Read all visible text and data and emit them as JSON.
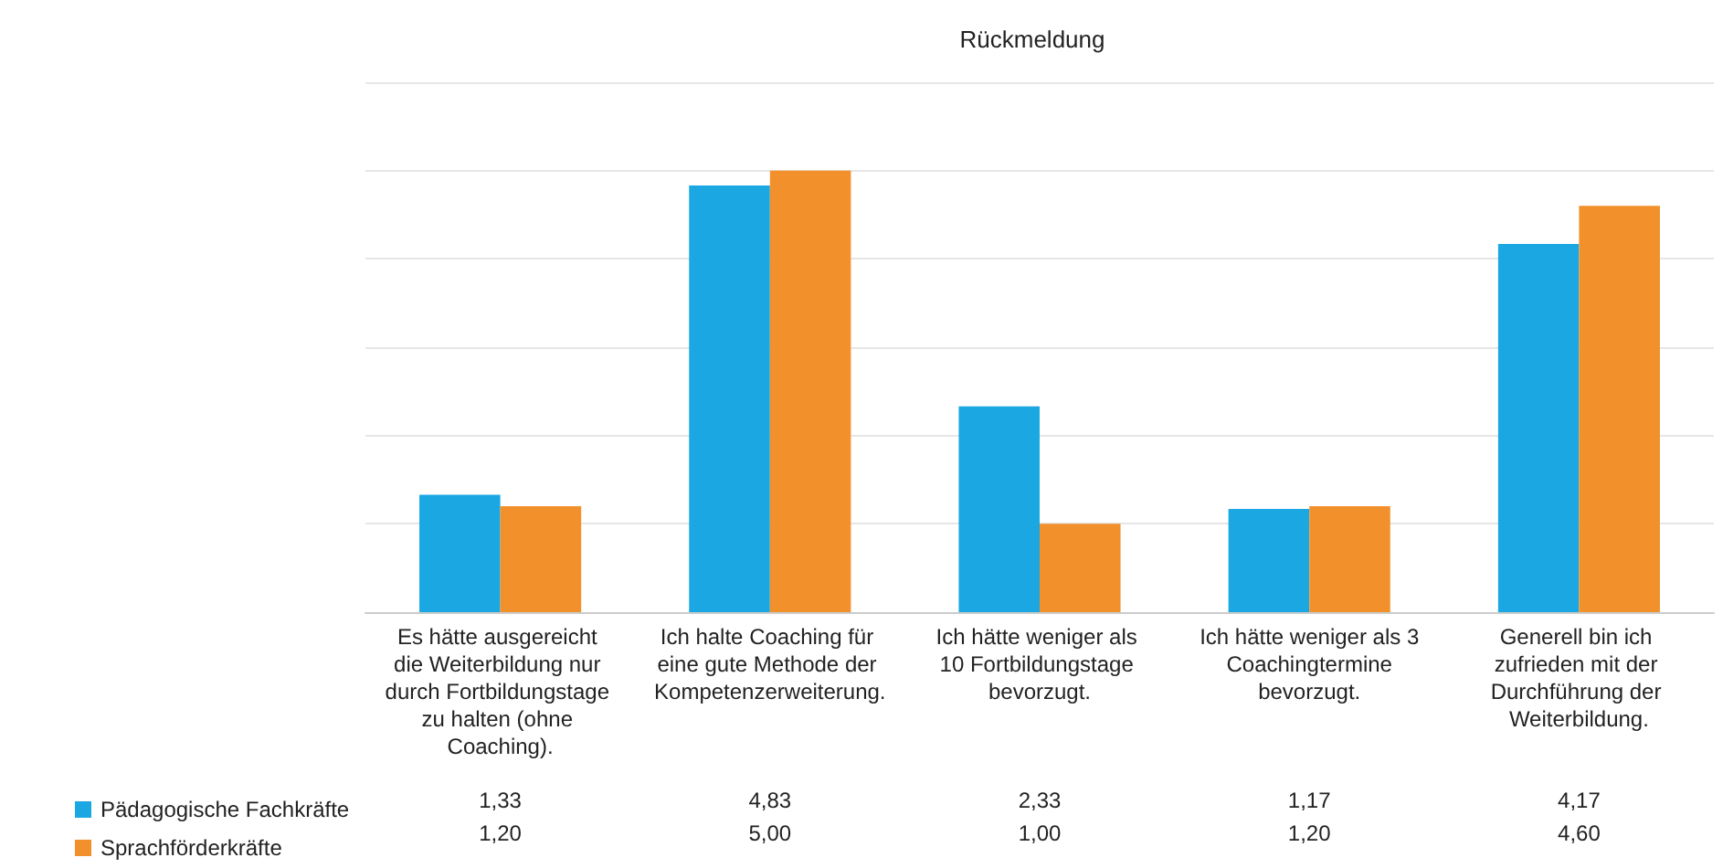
{
  "chart_data": {
    "type": "bar",
    "title": "Rückmeldung",
    "categories": [
      "Es hätte ausgereicht die Weiterbildung nur durch Fortbildungstage zu halten (ohne Coaching).",
      "Ich halte Coaching für eine gute Methode der Kompetenzerweiterung.",
      "Ich hätte weniger als 10 Fortbildungstage bevorzugt.",
      "Ich hätte weniger als 3 Coachingtermine bevorzugt.",
      "Generell bin ich zufrieden mit der Durchführung der Weiterbildung."
    ],
    "series": [
      {
        "name": "Pädagogische Fachkräfte",
        "color": "#1aa7e2",
        "values": [
          1.33,
          4.83,
          2.33,
          1.17,
          4.17
        ],
        "value_labels": [
          "1,33",
          "4,83",
          "2,33",
          "1,17",
          "4,17"
        ]
      },
      {
        "name": "Sprachförderkräfte",
        "color": "#f2912c",
        "values": [
          1.2,
          5.0,
          1.0,
          1.2,
          4.6
        ],
        "value_labels": [
          "1,20",
          "5,00",
          "1,00",
          "1,20",
          "4,60"
        ]
      }
    ],
    "ylim": [
      0,
      6
    ],
    "yticks": [
      {
        "value": 0,
        "label": null
      },
      {
        "value": 1,
        "label": null
      },
      {
        "value": 2,
        "label": null
      },
      {
        "value": 3,
        "label": null
      },
      {
        "value": 4,
        "label": null
      },
      {
        "value": 5,
        "label": null
      },
      {
        "value": 6,
        "label": null
      }
    ],
    "grid": "y",
    "legend": "bottom left",
    "tick_labels": "x"
  }
}
